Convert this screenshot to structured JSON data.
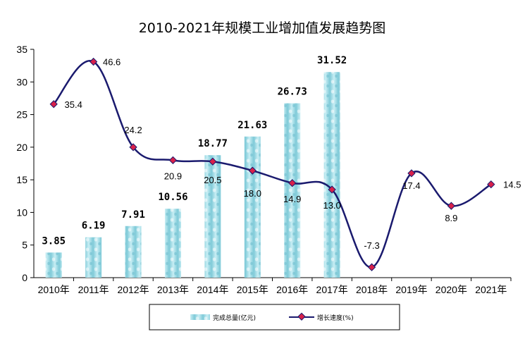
{
  "chart_data": {
    "type": "bar+line",
    "title": "2010-2021年规模工业增加值发展趋势图",
    "categories": [
      "2010年",
      "2011年",
      "2012年",
      "2013年",
      "2014年",
      "2015年",
      "2016年",
      "2017年",
      "2018年",
      "2019年",
      "2020年",
      "2021年"
    ],
    "y_ticks": [
      "0",
      "5",
      "10",
      "15",
      "20",
      "25",
      "30",
      "35"
    ],
    "ylim": [
      0,
      35
    ],
    "series": [
      {
        "name": "完成总量(亿元)",
        "type": "bar",
        "values": [
          3.85,
          6.19,
          7.91,
          10.56,
          18.77,
          21.63,
          26.73,
          31.52,
          null,
          null,
          null,
          null
        ],
        "labels": [
          "3.85",
          "6.19",
          "7.91",
          "10.56",
          "18.77",
          "21.63",
          "26.73",
          "31.52",
          "",
          "",
          "",
          ""
        ],
        "color": "#a8dde8"
      },
      {
        "name": "增长速度(%)",
        "type": "line",
        "values": [
          35.4,
          46.6,
          24.2,
          20.9,
          20.5,
          18.0,
          14.9,
          13.0,
          -7.3,
          17.4,
          8.9,
          14.5
        ],
        "plotted_y": [
          26.6,
          33.1,
          20.0,
          18.0,
          17.8,
          16.4,
          14.5,
          13.5,
          1.6,
          16.0,
          11.0,
          14.3
        ],
        "labels": [
          "35.4",
          "46.6",
          "24.2",
          "20.9",
          "20.5",
          "18.0",
          "14.9",
          "13.0",
          "-7.3",
          "17.4",
          "8.9",
          "14.5"
        ],
        "color": "#1a1a6e",
        "marker_color": "#d8204a"
      }
    ],
    "grid": false,
    "legend": "bottom"
  }
}
